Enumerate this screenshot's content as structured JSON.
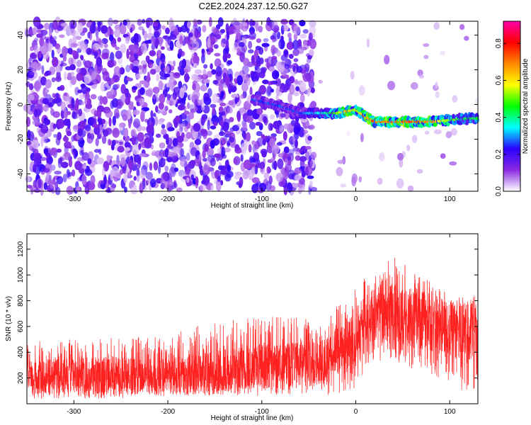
{
  "title": "C2E2.2024.237.12.50.G27",
  "chart_data": [
    {
      "type": "heatmap",
      "xlabel": "Height of straight line (km)",
      "ylabel": "Frequency (Hz)",
      "xlim": [
        -350,
        130
      ],
      "ylim": [
        -50,
        48
      ],
      "xticks": [
        -300,
        -200,
        -100,
        0,
        100
      ],
      "yticks": [
        -40,
        -20,
        0,
        20,
        40
      ],
      "grid": false,
      "colorbar": {
        "label": "Normalized spectral amplitude",
        "range": [
          0.0,
          0.92
        ],
        "ticks": [
          0.0,
          0.2,
          0.4,
          0.6,
          0.8
        ],
        "colormap": [
          "#ffffff",
          "#8a2be2",
          "#2a00ff",
          "#00ffff",
          "#00ff00",
          "#ffff00",
          "#ff8800",
          "#ff0000",
          "#ff00aa"
        ]
      },
      "ridge": {
        "x": [
          -110,
          -80,
          -60,
          -40,
          -20,
          -10,
          0,
          10,
          20,
          40,
          60,
          80,
          100,
          120,
          130
        ],
        "y": [
          3,
          -1,
          -5,
          -5,
          -5,
          -4,
          -3,
          -7,
          -10,
          -10,
          -10,
          -10,
          -9,
          -8,
          -8
        ],
        "peak_amplitude": [
          0.3,
          0.3,
          0.3,
          0.4,
          0.6,
          0.8,
          0.6,
          0.8,
          0.85,
          0.85,
          0.85,
          0.8,
          0.6,
          0.5,
          0.5
        ]
      }
    },
    {
      "type": "line",
      "xlabel": "Height of straight line (km)",
      "ylabel": "SNR (10 * v/v)",
      "xlim": [
        -350,
        130
      ],
      "ylim": [
        0,
        1320
      ],
      "xticks": [
        -300,
        -200,
        -100,
        0,
        100
      ],
      "yticks": [
        200,
        400,
        600,
        800,
        1000,
        1200
      ],
      "grid": false,
      "series": [
        {
          "color": "#ff2020",
          "x": [
            -350,
            -300,
            -250,
            -200,
            -150,
            -100,
            -50,
            -30,
            -20,
            -10,
            0,
            10,
            20,
            30,
            40,
            50,
            60,
            70,
            80,
            90,
            100,
            110,
            120,
            130
          ],
          "mean": [
            200,
            220,
            215,
            210,
            240,
            280,
            300,
            330,
            420,
            480,
            540,
            600,
            650,
            680,
            700,
            700,
            680,
            660,
            640,
            620,
            600,
            580,
            560,
            560
          ],
          "upper": [
            480,
            500,
            520,
            540,
            640,
            700,
            680,
            620,
            800,
            850,
            900,
            1000,
            1020,
            1080,
            1150,
            1100,
            1050,
            980,
            950,
            900,
            880,
            850,
            820,
            850
          ],
          "lower": [
            40,
            40,
            40,
            60,
            60,
            60,
            80,
            60,
            60,
            100,
            120,
            240,
            300,
            350,
            350,
            300,
            260,
            240,
            220,
            200,
            150,
            100,
            80,
            140
          ]
        }
      ]
    }
  ]
}
